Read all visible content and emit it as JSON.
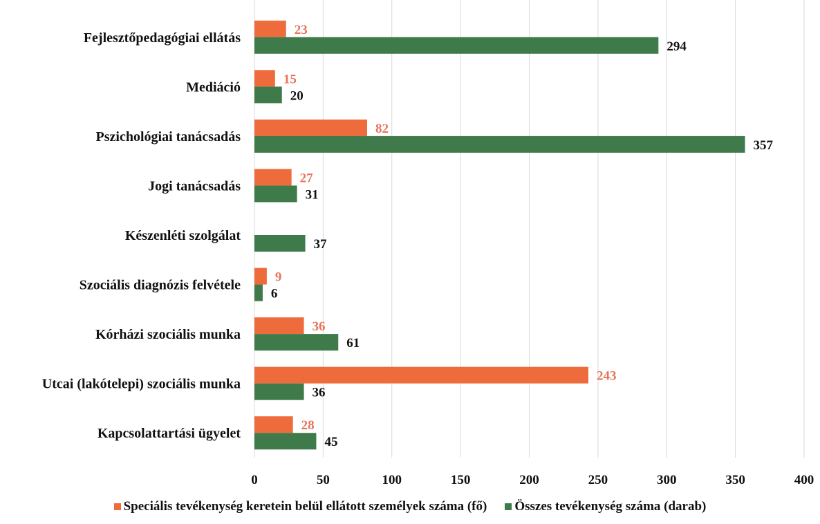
{
  "chart_data": {
    "type": "bar",
    "orientation": "horizontal",
    "categories": [
      "Fejlesztőpedagógiai ellátás",
      "Mediáció",
      "Pszichológiai tanácsadás",
      "Jogi tanácsadás",
      "Készenléti szolgálat",
      "Szociális diagnózis felvétele",
      "Kórházi szociális munka",
      "Utcai (lakótelepi) szociális munka",
      "Kapcsolattartási ügyelet"
    ],
    "series": [
      {
        "name": "Speciális tevékenység keretein belül ellátott személyek száma (fő)",
        "color": "#ee6b3b",
        "label_color": "#e8735a",
        "values": [
          23,
          15,
          82,
          27,
          null,
          9,
          36,
          243,
          28
        ]
      },
      {
        "name": "Összes tevékenység száma (darab)",
        "color": "#3f7a4b",
        "label_color": "#111111",
        "values": [
          294,
          20,
          357,
          31,
          37,
          6,
          61,
          36,
          45
        ]
      }
    ],
    "xlim": [
      0,
      400
    ],
    "xticks": [
      0,
      50,
      100,
      150,
      200,
      250,
      300,
      350,
      400
    ],
    "grid": true,
    "legend_position": "bottom"
  }
}
